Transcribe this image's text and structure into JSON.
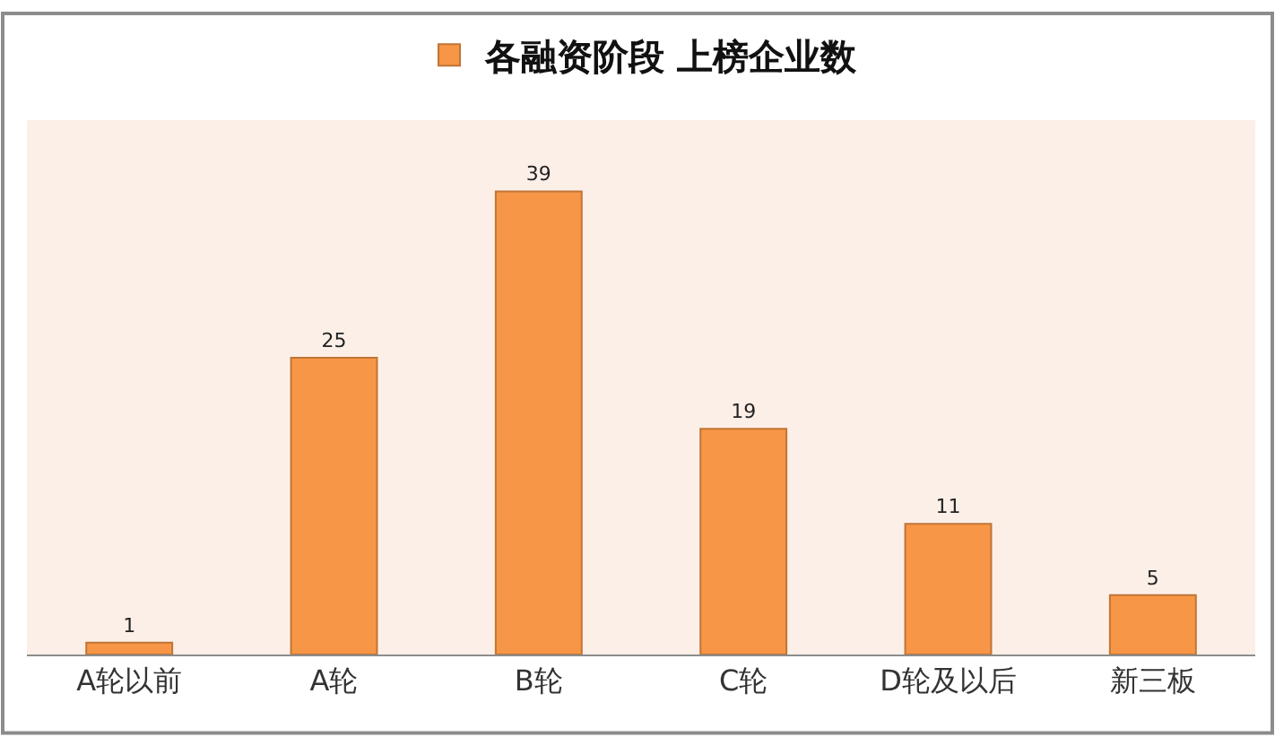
{
  "chart_data": {
    "type": "bar",
    "categories": [
      "A轮以前",
      "A轮",
      "B轮",
      "C轮",
      "D轮及以后",
      "新三板"
    ],
    "series": [
      {
        "name": "各融资阶段 上榜企业数",
        "color": "#f79646",
        "values": [
          1,
          25,
          39,
          19,
          11,
          5
        ]
      }
    ],
    "data_labels": true,
    "legend": "top",
    "ylim": [
      0,
      45
    ],
    "tick_labels": "x"
  }
}
